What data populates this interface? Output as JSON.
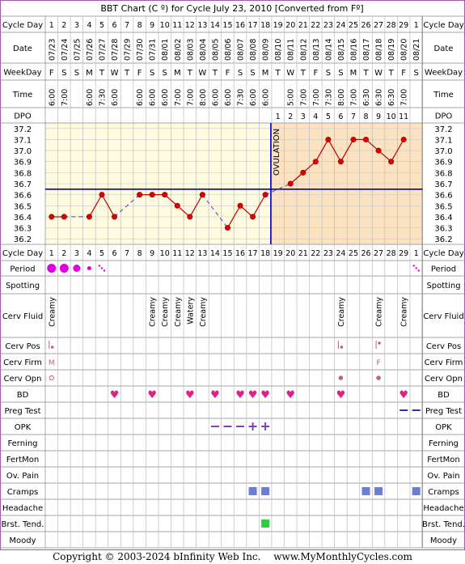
{
  "title": "BBT Chart (C º) for Cycle July 23, 2010  [Converted from Fº]",
  "footer": {
    "copyright": "Copyright © 2003-2024 bInfinity Web Inc.",
    "site": "www.MyMonthlyCycles.com"
  },
  "row_labels": {
    "cycle_day": "Cycle Day",
    "date": "Date",
    "weekday": "WeekDay",
    "time": "Time",
    "dpo": "DPO",
    "period": "Period",
    "spotting": "Spotting",
    "cerv_fluid": "Cerv Fluid",
    "cerv_pos": "Cerv Pos",
    "cerv_firm": "Cerv Firm",
    "cerv_opn": "Cerv Opn",
    "bd": "BD",
    "preg_test": "Preg Test",
    "opk": "OPK",
    "ferning": "Ferning",
    "fertmon": "FertMon",
    "ov_pain": "Ov. Pain",
    "cramps": "Cramps",
    "headache": "Headache",
    "brst_tend": "Brst. Tend.",
    "moody": "Moody"
  },
  "chart_data": {
    "type": "line",
    "title": "BBT Chart (C º) for Cycle July 23, 2010  [Converted from Fº]",
    "cycle_days": [
      "1",
      "2",
      "3",
      "4",
      "5",
      "6",
      "7",
      "8",
      "9",
      "10",
      "11",
      "12",
      "13",
      "14",
      "15",
      "16",
      "17",
      "18",
      "19",
      "20",
      "21",
      "22",
      "23",
      "24",
      "25",
      "26",
      "27",
      "28",
      "29",
      "1"
    ],
    "dates": [
      "07/23",
      "07/24",
      "07/25",
      "07/26",
      "07/27",
      "07/28",
      "07/29",
      "07/30",
      "07/31",
      "08/01",
      "08/02",
      "08/03",
      "08/04",
      "08/05",
      "08/06",
      "08/07",
      "08/08",
      "08/09",
      "08/10",
      "08/11",
      "08/12",
      "08/13",
      "08/14",
      "08/15",
      "08/16",
      "08/17",
      "08/18",
      "08/19",
      "08/20",
      "08/21"
    ],
    "weekdays": [
      "F",
      "S",
      "S",
      "M",
      "T",
      "W",
      "T",
      "F",
      "S",
      "S",
      "M",
      "T",
      "W",
      "T",
      "F",
      "S",
      "S",
      "M",
      "T",
      "W",
      "T",
      "F",
      "S",
      "S",
      "M",
      "T",
      "W",
      "T",
      "F",
      "S"
    ],
    "times": [
      "6:00",
      "7:00",
      "",
      "6:00",
      "7:30",
      "6:00",
      "",
      "6:00",
      "6:00",
      "6:00",
      "7:00",
      "7:00",
      "8:00",
      "6:00",
      "6:00",
      "7:30",
      "6:00",
      "6:00",
      "",
      "5:00",
      "7:00",
      "7:00",
      "7:30",
      "8:00",
      "7:00",
      "6:30",
      "6:30",
      "6:30",
      "7:00",
      ""
    ],
    "dpo": [
      "",
      "",
      "",
      "",
      "",
      "",
      "",
      "",
      "",
      "",
      "",
      "",
      "",
      "",
      "",
      "",
      "",
      "",
      "1",
      "2",
      "3",
      "4",
      "5",
      "6",
      "7",
      "8",
      "9",
      "10",
      "11",
      ""
    ],
    "temps": [
      36.4,
      36.4,
      null,
      36.4,
      36.6,
      36.4,
      null,
      36.6,
      36.6,
      36.6,
      36.5,
      36.4,
      36.6,
      null,
      36.3,
      36.5,
      36.4,
      36.6,
      null,
      36.7,
      36.8,
      36.9,
      37.1,
      36.9,
      37.1,
      37.1,
      37.0,
      36.9,
      37.1,
      null
    ],
    "y_ticks": [
      "37.2",
      "37.1",
      "37.0",
      "36.9",
      "36.8",
      "36.7",
      "36.6",
      "36.5",
      "36.4",
      "36.3",
      "36.2"
    ],
    "ylim": [
      36.15,
      37.25
    ],
    "coverline": 36.65,
    "ovulation_day_index": 17,
    "ovulation_label": "OVULATION",
    "period": [
      "heavy",
      "heavy",
      "medium",
      "light",
      "spotting",
      "",
      "",
      "",
      "",
      "",
      "",
      "",
      "",
      "",
      "",
      "",
      "",
      "",
      "",
      "",
      "",
      "",
      "",
      "",
      "",
      "",
      "",
      "",
      "",
      "spotting"
    ],
    "cerv_fluid": [
      "Creamy",
      "",
      "",
      "",
      "",
      "",
      "",
      "",
      "Creamy",
      "Creamy",
      "Creamy",
      "Watery",
      "Creamy",
      "",
      "",
      "",
      "",
      "",
      "",
      "",
      "",
      "",
      "",
      "Creamy",
      "",
      "",
      "Creamy",
      "",
      "Creamy",
      ""
    ],
    "cerv_pos": {
      "0": "|•",
      "23": "|•",
      "26": "|•"
    },
    "cerv_firm": {
      "0": "M",
      "26": "F"
    },
    "cerv_opn": {
      "0": "o",
      "23": "●",
      "26": "●"
    },
    "bd": [
      5,
      8,
      11,
      13,
      15,
      16,
      17,
      19,
      23,
      28
    ],
    "preg_test": [
      28,
      29
    ],
    "opk_neg": [
      13,
      14,
      15
    ],
    "opk_pos": [
      16,
      17
    ],
    "cramps": [
      16,
      17,
      25,
      26,
      29
    ],
    "brst_tend": [
      17
    ],
    "colors": {
      "temp_line": "#c00000",
      "temp_dot": "#e00000",
      "coverline": "#0000c0",
      "luteal_bg": "#fbe3c1",
      "follicular_bg": "#fefae0",
      "period": "#e000e0",
      "heart": "#e0208a",
      "opk": "#8040c0",
      "cramps": "#6b7fd0",
      "brst": "#2ecc40",
      "preg": "#3030c0",
      "cerv": "#c06080"
    }
  }
}
